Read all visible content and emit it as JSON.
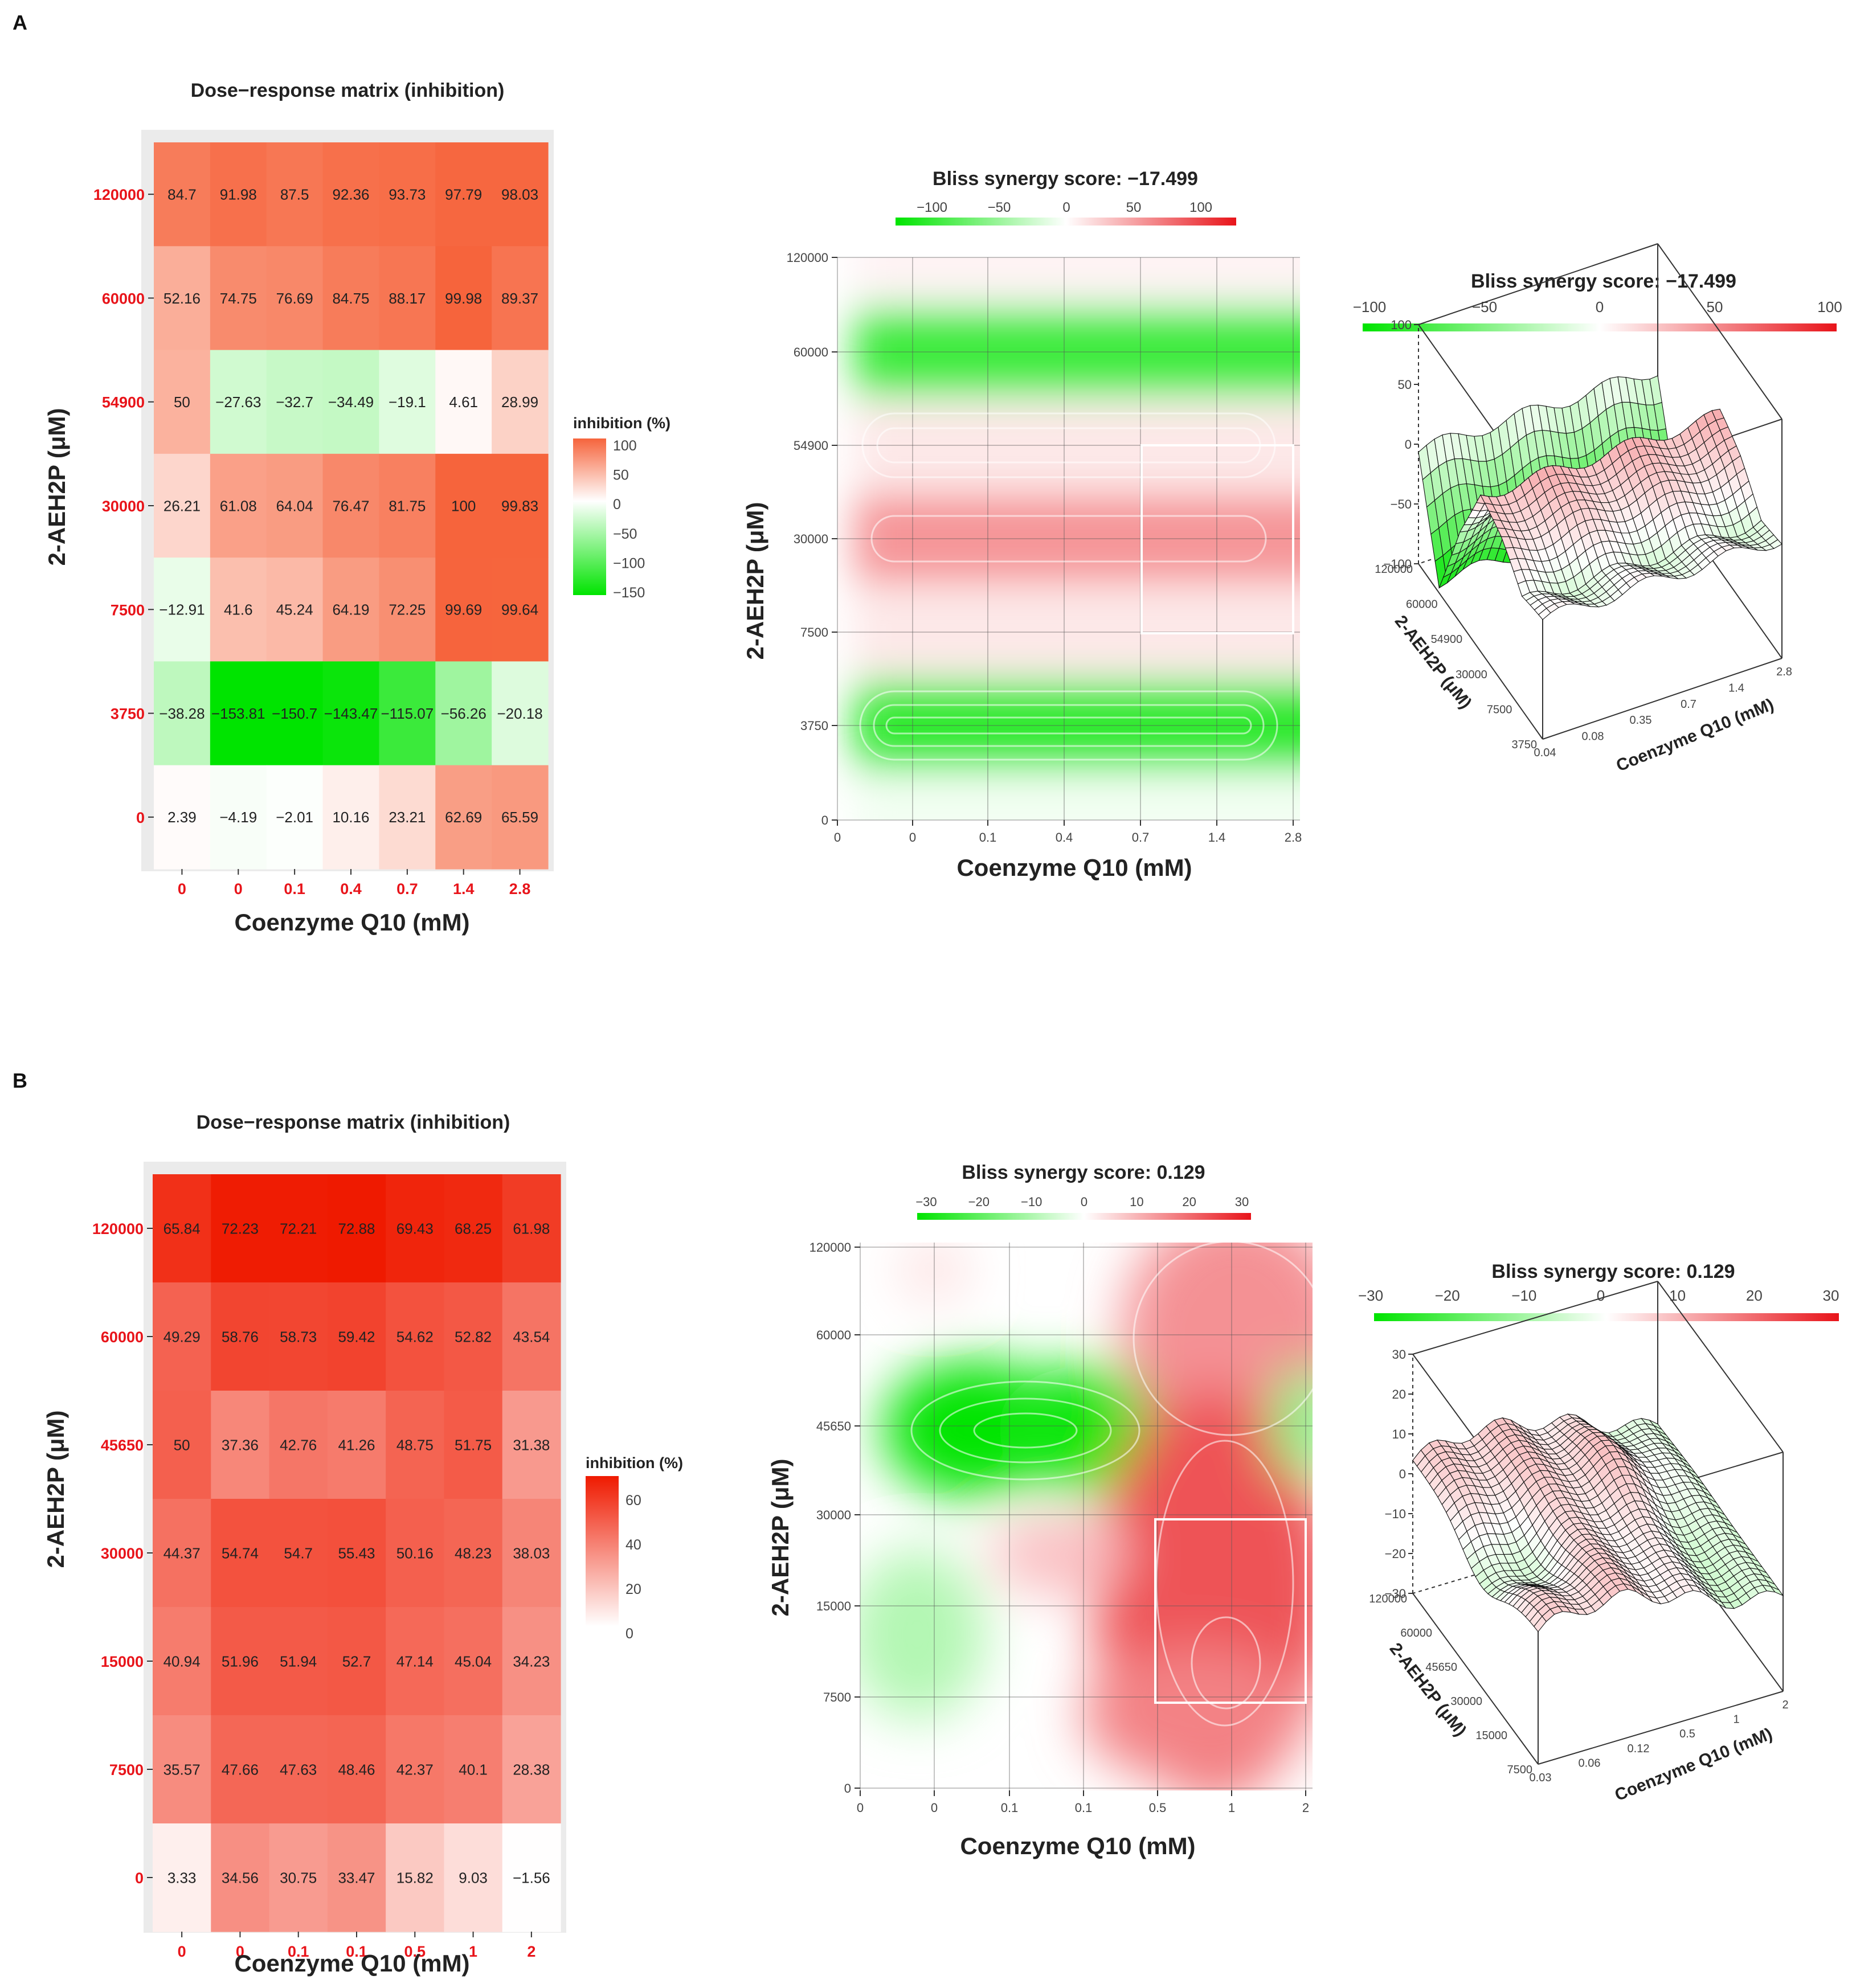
{
  "chart_data": [
    {
      "panel": "A",
      "type": "heatmap",
      "title": "Dose−response matrix (inhibition)",
      "xlabel": "Coenzyme Q10 (mM)",
      "ylabel": "2-AEH2P (μM)",
      "x_ticks": [
        "0",
        "0",
        "0.1",
        "0.4",
        "0.7",
        "1.4",
        "2.8"
      ],
      "y_ticks": [
        "120000",
        "60000",
        "54900",
        "30000",
        "7500",
        "3750",
        "0"
      ],
      "values": [
        [
          "84.7",
          "91.98",
          "87.5",
          "92.36",
          "93.73",
          "97.79",
          "98.03"
        ],
        [
          "52.16",
          "74.75",
          "76.69",
          "84.75",
          "88.17",
          "99.98",
          "89.37"
        ],
        [
          "50",
          "−27.63",
          "−32.7",
          "−34.49",
          "−19.1",
          "4.61",
          "28.99"
        ],
        [
          "26.21",
          "61.08",
          "64.04",
          "76.47",
          "81.75",
          "100",
          "99.83"
        ],
        [
          "−12.91",
          "41.6",
          "45.24",
          "64.19",
          "72.25",
          "99.69",
          "99.64"
        ],
        [
          "−38.28",
          "−153.81",
          "−150.7",
          "−143.47",
          "−115.07",
          "−56.26",
          "−20.18"
        ],
        [
          "2.39",
          "−4.19",
          "−2.01",
          "10.16",
          "23.21",
          "62.69",
          "65.59"
        ]
      ],
      "legend": {
        "title": "inhibition (%)",
        "ticks": [
          "100",
          "50",
          "0",
          "−50",
          "−100",
          "−150"
        ],
        "range": [
          -150,
          100
        ]
      }
    },
    {
      "panel": "A",
      "type": "heatmap",
      "title": "Bliss synergy score: −17.499",
      "xlabel": "Coenzyme Q10 (mM)",
      "ylabel": "2-AEH2P (μM)",
      "x_ticks": [
        "0",
        "0",
        "0.1",
        "0.4",
        "0.7",
        "1.4",
        "2.8"
      ],
      "y_ticks": [
        "0",
        "3750",
        "7500",
        "30000",
        "54900",
        "60000",
        "120000"
      ],
      "colorbar_ticks": [
        "−100",
        "−50",
        "0",
        "50",
        "100"
      ],
      "range": [
        -100,
        100
      ],
      "row_scores_bottom_to_top": [
        -5,
        -80,
        10,
        45,
        10,
        -75,
        5
      ]
    },
    {
      "panel": "A",
      "type": "surface3d",
      "title": "Bliss synergy score: −17.499",
      "xlabel": "Coenzyme Q10 (mM)",
      "ylabel": "2-AEH2P (μM)",
      "colorbar_ticks": [
        "−100",
        "−50",
        "0",
        "50",
        "100"
      ],
      "z_ticks": [
        "100",
        "50",
        "0",
        "−50",
        "−100"
      ],
      "x_ticks": [
        "0.04",
        "0.08",
        "0.35",
        "0.7",
        "1.4",
        "2.8"
      ],
      "y_ticks": [
        "120000",
        "60000",
        "54900",
        "30000",
        "7500",
        "3750"
      ]
    },
    {
      "panel": "B",
      "type": "heatmap",
      "title": "Dose−response matrix (inhibition)",
      "xlabel": "Coenzyme Q10 (mM)",
      "ylabel": "2-AEH2P (μM)",
      "x_ticks": [
        "0",
        "0",
        "0.1",
        "0.1",
        "0.5",
        "1",
        "2"
      ],
      "y_ticks": [
        "120000",
        "60000",
        "45650",
        "30000",
        "15000",
        "7500",
        "0"
      ],
      "values": [
        [
          "65.84",
          "72.23",
          "72.21",
          "72.88",
          "69.43",
          "68.25",
          "61.98"
        ],
        [
          "49.29",
          "58.76",
          "58.73",
          "59.42",
          "54.62",
          "52.82",
          "43.54"
        ],
        [
          "50",
          "37.36",
          "42.76",
          "41.26",
          "48.75",
          "51.75",
          "31.38"
        ],
        [
          "44.37",
          "54.74",
          "54.7",
          "55.43",
          "50.16",
          "48.23",
          "38.03"
        ],
        [
          "40.94",
          "51.96",
          "51.94",
          "52.7",
          "47.14",
          "45.04",
          "34.23"
        ],
        [
          "35.57",
          "47.66",
          "47.63",
          "48.46",
          "42.37",
          "40.1",
          "28.38"
        ],
        [
          "3.33",
          "34.56",
          "30.75",
          "33.47",
          "15.82",
          "9.03",
          "−1.56"
        ]
      ],
      "legend": {
        "title": "inhibition (%)",
        "ticks": [
          "60",
          "40",
          "20",
          "0"
        ],
        "range": [
          -2,
          73
        ]
      }
    },
    {
      "panel": "B",
      "type": "heatmap",
      "title": "Bliss synergy score: 0.129",
      "xlabel": "Coenzyme Q10 (mM)",
      "ylabel": "2-AEH2P (μM)",
      "x_ticks": [
        "0",
        "0",
        "0.1",
        "0.1",
        "0.5",
        "1",
        "2"
      ],
      "y_ticks": [
        "0",
        "7500",
        "15000",
        "30000",
        "45650",
        "60000",
        "120000"
      ],
      "colorbar_ticks": [
        "−30",
        "−20",
        "−10",
        "0",
        "10",
        "20",
        "30"
      ],
      "range": [
        -30,
        30
      ]
    },
    {
      "panel": "B",
      "type": "surface3d",
      "title": "Bliss synergy score: 0.129",
      "xlabel": "Coenzyme Q10 (mM)",
      "ylabel": "2-AEH2P (μM)",
      "colorbar_ticks": [
        "−30",
        "−20",
        "−10",
        "0",
        "10",
        "20",
        "30"
      ],
      "z_ticks": [
        "30",
        "20",
        "10",
        "0",
        "−10",
        "−20",
        "−30"
      ],
      "x_ticks": [
        "0.03",
        "0.06",
        "0.12",
        "0.5",
        "1",
        "2"
      ],
      "y_ticks": [
        "120000",
        "60000",
        "45650",
        "30000",
        "15000",
        "7500"
      ]
    }
  ],
  "panel_labels": {
    "a": "A",
    "b": "B"
  }
}
